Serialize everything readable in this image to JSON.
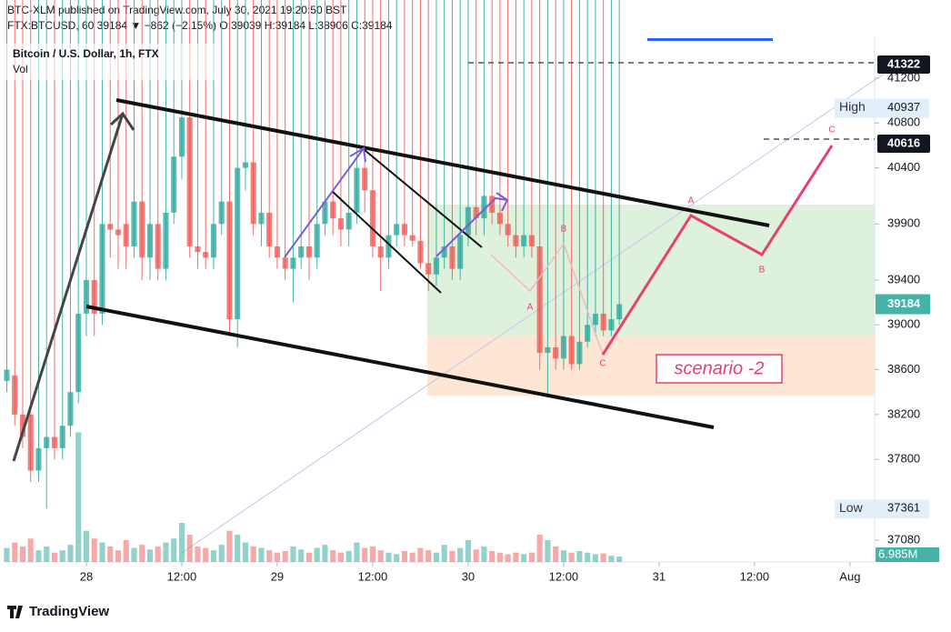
{
  "chart_data": {
    "type": "candlestick",
    "published": "BTC-XLM published on TradingView.com, July 30, 2021 19:20:50 BST",
    "info": "FTX:BTCUSD, 60  39184 ▼ −862 (−2.15%) O:39039 H:39184 L:38906 C:39184",
    "title": "Bitcoin / U.S. Dollar, 1h, FTX",
    "volume_title": "Vol",
    "up_color": "#26a69a",
    "down_color": "#ef5350",
    "x": [
      -10,
      -9,
      -8,
      -7,
      -6,
      -5,
      -4,
      -3,
      -2,
      -1,
      0,
      1,
      2,
      3,
      4,
      5,
      6,
      7,
      8,
      9,
      10,
      11,
      12,
      13,
      14,
      15,
      16,
      17,
      18,
      19,
      20,
      21,
      22,
      23,
      24,
      25,
      26,
      27,
      28,
      29,
      30,
      31,
      32,
      33,
      34,
      35,
      36,
      37,
      38,
      39,
      40,
      41,
      42,
      43,
      44,
      45,
      46,
      47,
      48,
      49,
      50,
      51,
      52,
      53,
      54,
      55,
      56,
      57,
      58,
      59,
      60,
      61,
      62,
      63,
      64,
      65,
      66,
      67
    ],
    "open": [
      38500,
      38550,
      38200,
      38200,
      37700,
      37900,
      38000,
      37900,
      38100,
      38400,
      39100,
      39400,
      39100,
      39900,
      39850,
      39900,
      39700,
      40100,
      39600,
      39900,
      39500,
      40000,
      40500,
      40850,
      39700,
      39650,
      39600,
      39900,
      40100,
      39050,
      40400,
      40450,
      39900,
      40000,
      39700,
      39600,
      39500,
      39600,
      39700,
      39600,
      39900,
      40100,
      39950,
      39850,
      40000,
      40400,
      40200,
      39700,
      39600,
      39800,
      39900,
      39800,
      39750,
      39550,
      39450,
      39600,
      39700,
      39500,
      39800,
      40050,
      39950,
      40150,
      40000,
      39900,
      39800,
      39700,
      39800,
      39700,
      38750,
      38800,
      38700,
      38900,
      38650,
      38850,
      39000,
      39100,
      38950,
      39050
    ],
    "high": 40937,
    "low": [
      38400,
      38100,
      37900,
      37600,
      37600,
      37361,
      37800,
      37800,
      38000,
      38300,
      38900,
      38900,
      39000,
      39600,
      39500,
      39500,
      39600,
      39400,
      39400,
      39400,
      39400,
      39900,
      40300,
      39600,
      39500,
      39500,
      39500,
      39800,
      38900,
      38800,
      40200,
      39800,
      39700,
      39600,
      39500,
      39400,
      39200,
      39500,
      39400,
      39500,
      39800,
      39800,
      39700,
      39700,
      39900,
      40000,
      39600,
      39300,
      39500,
      39700,
      39700,
      39700,
      39500,
      39300,
      39350,
      39500,
      39400,
      39400,
      39700,
      39800,
      39800,
      39900,
      39800,
      39700,
      39600,
      39600,
      39600,
      38600,
      38350,
      38600,
      38600,
      38600,
      38600,
      38800,
      38900,
      38900,
      38900,
      39000
    ],
    "close": [
      38600,
      38200,
      38000,
      37700,
      37900,
      38000,
      37900,
      38100,
      38400,
      39100,
      39400,
      39100,
      39900,
      39850,
      39800,
      39700,
      40100,
      39600,
      39900,
      39500,
      40000,
      40500,
      40850,
      39700,
      39650,
      39600,
      39900,
      40100,
      39050,
      40400,
      40450,
      39900,
      40000,
      39700,
      39600,
      39500,
      39600,
      39700,
      39600,
      39900,
      40100,
      39950,
      39850,
      40000,
      40400,
      40200,
      39700,
      39600,
      39800,
      39900,
      39800,
      39750,
      39550,
      39450,
      39600,
      39700,
      39500,
      39800,
      40050,
      39950,
      40150,
      40000,
      39900,
      39800,
      39700,
      39800,
      39700,
      38750,
      38800,
      38700,
      38900,
      38650,
      38850,
      39000,
      39100,
      38950,
      39050,
      39184
    ],
    "volume": [
      18,
      25,
      20,
      30,
      15,
      20,
      12,
      15,
      22,
      166,
      40,
      30,
      25,
      20,
      15,
      28,
      18,
      22,
      16,
      20,
      25,
      30,
      50,
      35,
      20,
      18,
      15,
      22,
      40,
      35,
      25,
      20,
      18,
      15,
      12,
      14,
      20,
      16,
      12,
      18,
      22,
      15,
      12,
      14,
      25,
      18,
      20,
      15,
      12,
      10,
      14,
      12,
      18,
      15,
      12,
      22,
      14,
      18,
      28,
      16,
      20,
      14,
      12,
      10,
      12,
      10,
      12,
      35,
      28,
      20,
      15,
      12,
      14,
      12,
      10,
      11,
      8,
      6.985
    ],
    "volume_value_label": "6.985M",
    "volume_lim": [
      0,
      673
    ],
    "xlim": [
      -9.94,
      99.1
    ],
    "xticks": [
      {
        "value": 0,
        "label": "28"
      },
      {
        "value": 12,
        "label": "12:00"
      },
      {
        "value": 24,
        "label": "29"
      },
      {
        "value": 36,
        "label": "12:00"
      },
      {
        "value": 48,
        "label": "30"
      },
      {
        "value": 60,
        "label": "12:00"
      },
      {
        "value": 72,
        "label": "31"
      },
      {
        "value": 84,
        "label": "12:00"
      },
      {
        "value": 96,
        "label": "Aug"
      }
    ],
    "ylim": [
      36885,
      41573
    ],
    "yticks": [
      41200,
      40800,
      40400,
      39900,
      39400,
      39000,
      38600,
      38200,
      37800,
      37080
    ],
    "levels": [
      41322,
      40616
    ],
    "high_label": "High",
    "low_label": "Low",
    "low_value": 37361,
    "last": 39184,
    "scenario": "scenario -2",
    "wave_labels": [
      "A",
      "B",
      "C",
      "A",
      "B",
      "C"
    ],
    "brand": "TradingView"
  }
}
